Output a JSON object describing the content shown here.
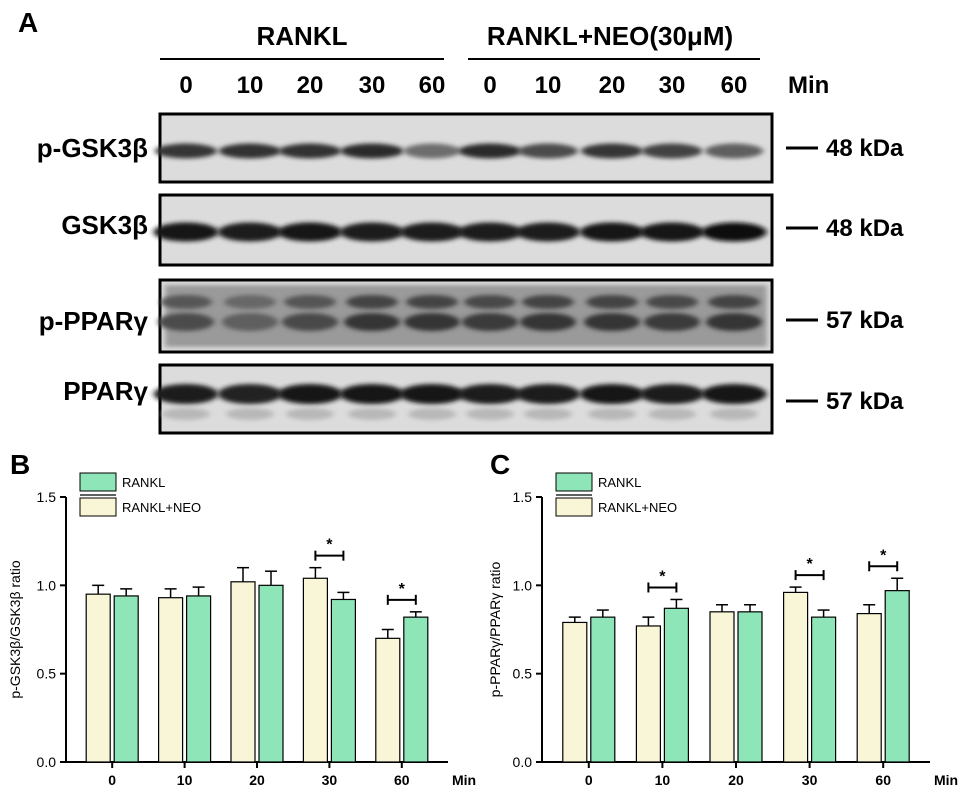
{
  "panel_a": {
    "letter": "A",
    "groups": [
      "RANKL",
      "RANKL+NEO(30μM)"
    ],
    "time_label": "Min",
    "timepoints": [
      "0",
      "10",
      "20",
      "30",
      "60",
      "0",
      "10",
      "20",
      "30",
      "60"
    ],
    "rows": [
      {
        "label": "p-GSK3β",
        "size": "48 kDa",
        "intensity": [
          0.8,
          0.82,
          0.82,
          0.86,
          0.55,
          0.86,
          0.7,
          0.8,
          0.74,
          0.62
        ]
      },
      {
        "label": "GSK3β",
        "size": "48 kDa",
        "intensity": [
          0.95,
          0.92,
          0.93,
          0.92,
          0.92,
          0.92,
          0.92,
          0.93,
          0.94,
          0.97
        ]
      },
      {
        "label": "p-PPARγ",
        "size": "57 kDa",
        "intensity": [
          0.7,
          0.62,
          0.72,
          0.8,
          0.8,
          0.78,
          0.8,
          0.8,
          0.78,
          0.8
        ]
      },
      {
        "label": "PPARγ",
        "size": "57 kDa",
        "intensity": [
          0.92,
          0.9,
          0.93,
          0.93,
          0.93,
          0.92,
          0.92,
          0.93,
          0.92,
          0.96
        ]
      }
    ]
  },
  "colors": {
    "rankl": "#f8f6d6",
    "rankl_neo": "#8ee6b8",
    "axis": "#000000"
  },
  "chart_data": [
    {
      "panel": "B",
      "type": "bar",
      "ylabel": "p-GSK3β/GSK3β ratio",
      "xunit": "Min",
      "categories": [
        "0",
        "10",
        "20",
        "30",
        "60"
      ],
      "ylim": [
        0,
        1.5
      ],
      "yticks": [
        "0.0",
        "0.5",
        "1.0",
        "1.5"
      ],
      "legend": [
        "RANKL",
        "RANKL+NEO"
      ],
      "series": [
        {
          "values": [
            0.95,
            0.93,
            1.02,
            1.04,
            0.7
          ],
          "errors": [
            0.05,
            0.05,
            0.08,
            0.06,
            0.05
          ]
        },
        {
          "values": [
            0.94,
            0.94,
            1.0,
            0.92,
            0.82
          ],
          "errors": [
            0.04,
            0.05,
            0.08,
            0.04,
            0.03
          ]
        }
      ],
      "significance": [
        {
          "category": "30",
          "label": "*"
        },
        {
          "category": "60",
          "label": "*"
        }
      ]
    },
    {
      "panel": "C",
      "type": "bar",
      "ylabel": "p-PPARγ/PPARγ ratio",
      "xunit": "Min",
      "categories": [
        "0",
        "10",
        "20",
        "30",
        "60"
      ],
      "ylim": [
        0,
        1.5
      ],
      "yticks": [
        "0.0",
        "0.5",
        "1.0",
        "1.5"
      ],
      "legend": [
        "RANKL",
        "RANKL+NEO"
      ],
      "series": [
        {
          "values": [
            0.79,
            0.77,
            0.85,
            0.96,
            0.84
          ],
          "errors": [
            0.03,
            0.05,
            0.04,
            0.03,
            0.05
          ]
        },
        {
          "values": [
            0.82,
            0.87,
            0.85,
            0.82,
            0.97
          ],
          "errors": [
            0.04,
            0.05,
            0.04,
            0.04,
            0.07
          ]
        }
      ],
      "significance": [
        {
          "category": "10",
          "label": "*"
        },
        {
          "category": "30",
          "label": "*"
        },
        {
          "category": "60",
          "label": "*"
        }
      ]
    }
  ]
}
